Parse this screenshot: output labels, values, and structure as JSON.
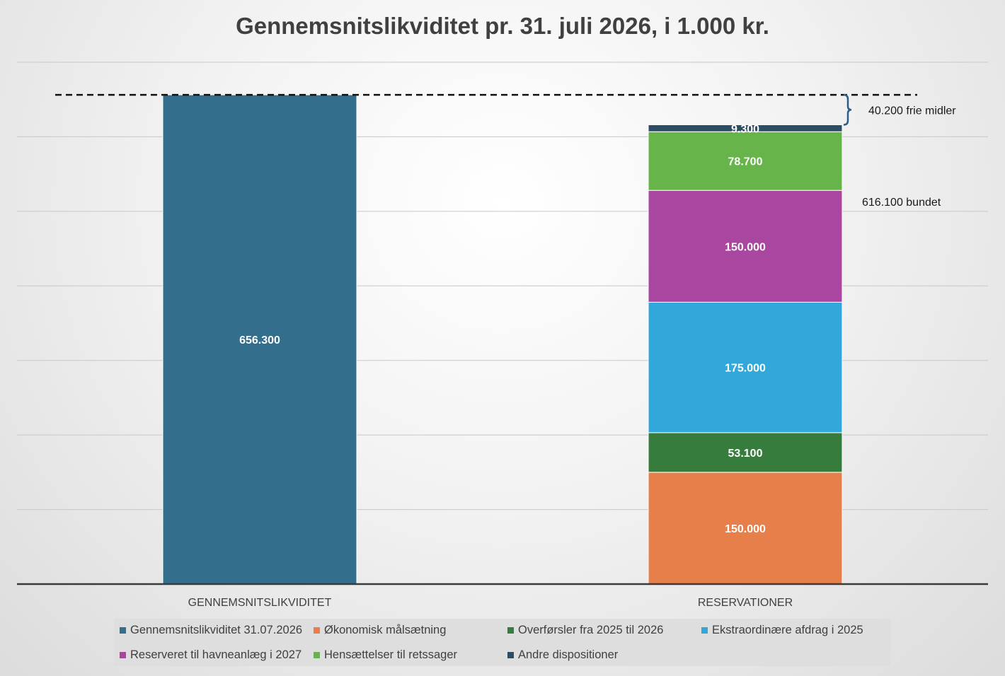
{
  "chart_data": {
    "type": "bar",
    "stacked": true,
    "title": "Gennemsnitslikviditet pr. 31. juli 2026, i 1.000 kr.",
    "categories": [
      "GENNEMSNITSLIKVIDITET",
      "RESERVATIONER"
    ],
    "series": [
      {
        "name": "Gennemsnitslikviditet 31.07.2026",
        "values": [
          656300,
          0
        ],
        "labels": [
          "656.300",
          ""
        ],
        "color": "#336e8c"
      },
      {
        "name": "Økonomisk målsætning",
        "values": [
          0,
          150000
        ],
        "labels": [
          "",
          "150.000"
        ],
        "color": "#e77f4b"
      },
      {
        "name": "Overførsler fra 2025 til 2026",
        "values": [
          0,
          53100
        ],
        "labels": [
          "",
          "53.100"
        ],
        "color": "#367c3d"
      },
      {
        "name": "Ekstraordinære afdrag i 2025",
        "values": [
          0,
          175000
        ],
        "labels": [
          "",
          "175.000"
        ],
        "color": "#31a8d9"
      },
      {
        "name": "Reserveret til havneanlæg i 2027",
        "values": [
          0,
          150000
        ],
        "labels": [
          "",
          "150.000"
        ],
        "color": "#a946a0"
      },
      {
        "name": "Hensættelser til retssager",
        "values": [
          0,
          78700
        ],
        "labels": [
          "",
          "78.700"
        ],
        "color": "#67b44a"
      },
      {
        "name": "Andre dispositioner",
        "values": [
          0,
          9300
        ],
        "labels": [
          "",
          "9.300"
        ],
        "color": "#2d4d63"
      }
    ],
    "ylim": [
      0,
      700000
    ],
    "grid": true,
    "reference_line": {
      "value": 656300,
      "style": "dashed"
    },
    "annotations": [
      {
        "text": "40.200 frie midler",
        "from": 616100,
        "to": 656300,
        "bracket": true
      },
      {
        "text": "616.100 bundet"
      }
    ],
    "legend": "bottom"
  }
}
